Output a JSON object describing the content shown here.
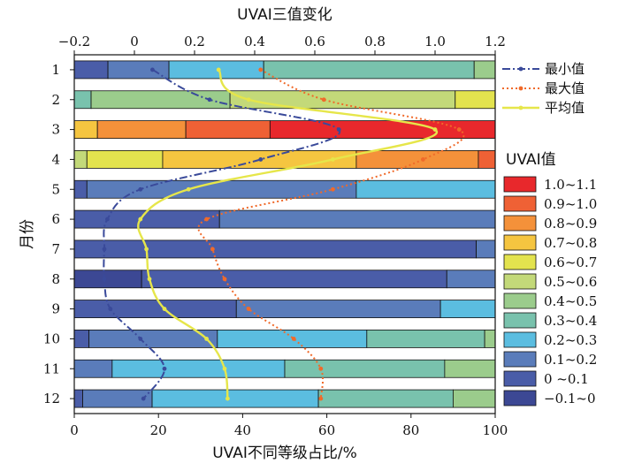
{
  "chart_data": {
    "type": "bar",
    "orientation": "horizontal",
    "stacked": true,
    "categories": [
      "1",
      "2",
      "3",
      "4",
      "5",
      "6",
      "7",
      "8",
      "9",
      "10",
      "11",
      "12"
    ],
    "xlabel": "UVAI不同等级占比/%",
    "ylabel": "月份",
    "xlim": [
      0,
      100
    ],
    "xticks": [
      "0",
      "20",
      "40",
      "60",
      "80",
      "100"
    ],
    "top_axis": {
      "label": "UVAI三值变化",
      "lim": [
        -0.2,
        1.2
      ],
      "ticks": [
        "−0.2",
        "0",
        "0.2",
        "0.4",
        "0.6",
        "0.8",
        "1.0",
        "1.2"
      ]
    },
    "bins_title": "UVAI值",
    "bins": [
      {
        "label": "1.0~1.1",
        "color": "#e8282c"
      },
      {
        "label": "0.9~1.0",
        "color": "#ef6135"
      },
      {
        "label": "0.8~0.9",
        "color": "#f4913a"
      },
      {
        "label": "0.7~0.8",
        "color": "#f5c540"
      },
      {
        "label": "0.6~0.7",
        "color": "#e3e34e"
      },
      {
        "label": "0.5~0.6",
        "color": "#c3d979"
      },
      {
        "label": "0.4~0.5",
        "color": "#9bcc8c"
      },
      {
        "label": "0.3~0.4",
        "color": "#79c2ad"
      },
      {
        "label": "0.2~0.3",
        "color": "#5bbde0"
      },
      {
        "label": "0.1~0.2",
        "color": "#5a7cba"
      },
      {
        "label": "0 ~0.1",
        "color": "#4a5da8"
      },
      {
        "label": "−0.1~0",
        "color": "#3c4894"
      }
    ],
    "segments_note": "per month: list of [bin_index, percent], bin_index into bins[], ordered low->high UVAI",
    "segments": [
      [
        [
          10,
          8
        ],
        [
          9,
          14.5
        ],
        [
          8,
          22.5
        ],
        [
          7,
          50
        ],
        [
          6,
          5
        ]
      ],
      [
        [
          7,
          4
        ],
        [
          6,
          33
        ],
        [
          5,
          53.5
        ],
        [
          4,
          9.5
        ]
      ],
      [
        [
          3,
          5.5
        ],
        [
          2,
          21
        ],
        [
          1,
          20
        ],
        [
          0,
          53.5
        ]
      ],
      [
        [
          5,
          3
        ],
        [
          4,
          18
        ],
        [
          3,
          46
        ],
        [
          2,
          29
        ],
        [
          1,
          4
        ]
      ],
      [
        [
          10,
          3
        ],
        [
          9,
          64
        ],
        [
          8,
          33
        ]
      ],
      [
        [
          10,
          34.5
        ],
        [
          9,
          65.5
        ]
      ],
      [
        [
          10,
          95.5
        ],
        [
          9,
          4.5
        ]
      ],
      [
        [
          11,
          16
        ],
        [
          10,
          72.5
        ],
        [
          9,
          11.5
        ]
      ],
      [
        [
          10,
          38.5
        ],
        [
          9,
          48.5
        ],
        [
          8,
          13
        ]
      ],
      [
        [
          10,
          3.5
        ],
        [
          9,
          30.5
        ],
        [
          8,
          35.5
        ],
        [
          7,
          28
        ],
        [
          6,
          2.5
        ]
      ],
      [
        [
          9,
          9
        ],
        [
          8,
          41
        ],
        [
          7,
          38
        ],
        [
          6,
          12
        ]
      ],
      [
        [
          10,
          2
        ],
        [
          9,
          16.5
        ],
        [
          8,
          39.5
        ],
        [
          7,
          32
        ],
        [
          6,
          10
        ]
      ]
    ],
    "series": [
      {
        "name": "最小值",
        "color": "#3a4a9a",
        "style": "dashdot",
        "values": [
          0.06,
          0.25,
          0.68,
          0.42,
          0.02,
          -0.09,
          -0.1,
          -0.1,
          -0.08,
          0.02,
          0.1,
          0.03
        ]
      },
      {
        "name": "最大值",
        "color": "#f06a2a",
        "style": "dotted",
        "values": [
          0.42,
          0.63,
          1.08,
          0.96,
          0.66,
          0.24,
          0.26,
          0.3,
          0.38,
          0.53,
          0.62,
          0.62
        ]
      },
      {
        "name": "平均值",
        "color": "#e6e64a",
        "style": "solid",
        "values": [
          0.28,
          0.38,
          1.0,
          0.66,
          0.18,
          0.02,
          0.04,
          0.05,
          0.1,
          0.24,
          0.3,
          0.31
        ]
      }
    ]
  }
}
